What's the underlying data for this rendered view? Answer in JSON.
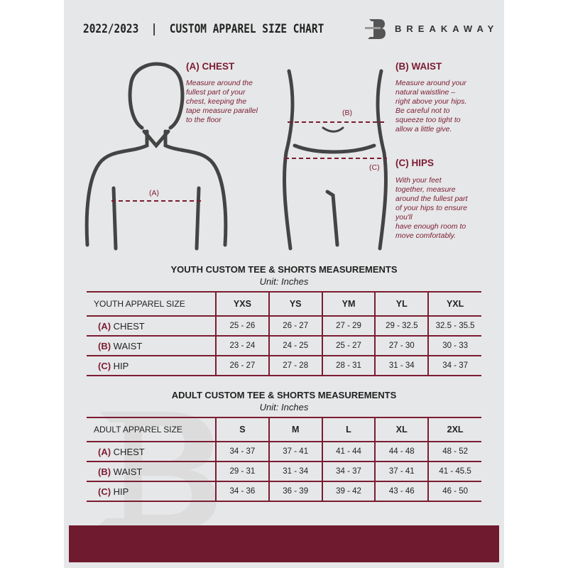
{
  "header": {
    "title": "2022/2023  |  CUSTOM APPAREL SIZE CHART",
    "brand": "BREAKAWAY",
    "logo_letter": "B"
  },
  "guides": {
    "chest": {
      "label": "(A) CHEST",
      "marker": "(A)",
      "text": [
        "Measure around the",
        "fullest part of your",
        "chest, keeping the",
        "tape measure parallel",
        "to the floor"
      ]
    },
    "waist": {
      "label": "(B) WAIST",
      "marker": "(B)",
      "text": [
        "Measure around your",
        "natural waistline –",
        "right above your hips.",
        "Be careful not to",
        "squeeze too tight to",
        "allow a little give."
      ]
    },
    "hips": {
      "label": "(C) HIPS",
      "marker": "(C)",
      "text": [
        "With your feet",
        "together, measure",
        "around the fullest part",
        "of your hips to ensure",
        "you'll",
        "have enough room to",
        "move comfortably."
      ]
    }
  },
  "youth": {
    "title": "YOUTH CUSTOM TEE & SHORTS MEASUREMENTS",
    "unit": "Unit: Inches",
    "header": [
      "YOUTH APPAREL SIZE",
      "YXS",
      "YS",
      "YM",
      "YL",
      "YXL"
    ],
    "rows": [
      {
        "letter": "(A)",
        "name": "CHEST",
        "values": [
          "25 - 26",
          "26 - 27",
          "27 - 29",
          "29 - 32.5",
          "32.5 - 35.5"
        ]
      },
      {
        "letter": "(B)",
        "name": "WAIST",
        "values": [
          "23 - 24",
          "24 - 25",
          "25 - 27",
          "27 - 30",
          "30 - 33"
        ]
      },
      {
        "letter": "(C)",
        "name": "HIP",
        "values": [
          "26 - 27",
          "27 - 28",
          "28 - 31",
          "31 - 34",
          "34 - 37"
        ]
      }
    ]
  },
  "adult": {
    "title": "ADULT CUSTOM TEE & SHORTS MEASUREMENTS",
    "unit": "Unit: Inches",
    "header": [
      "ADULT APPAREL SIZE",
      "S",
      "M",
      "L",
      "XL",
      "2XL"
    ],
    "rows": [
      {
        "letter": "(A)",
        "name": "CHEST",
        "values": [
          "34 - 37",
          "37 - 41",
          "41 - 44",
          "44 - 48",
          "48 - 52"
        ]
      },
      {
        "letter": "(B)",
        "name": "WAIST",
        "values": [
          "29 - 31",
          "31 - 34",
          "34 - 37",
          "37 - 41",
          "41 - 45.5"
        ]
      },
      {
        "letter": "(C)",
        "name": "HIP",
        "values": [
          "34 - 36",
          "36 - 39",
          "39 - 42",
          "43 - 46",
          "46 - 50"
        ]
      }
    ]
  },
  "colors": {
    "accent": "#7b1c33",
    "background": "#e6e7e8",
    "footer": "#701a2f"
  }
}
